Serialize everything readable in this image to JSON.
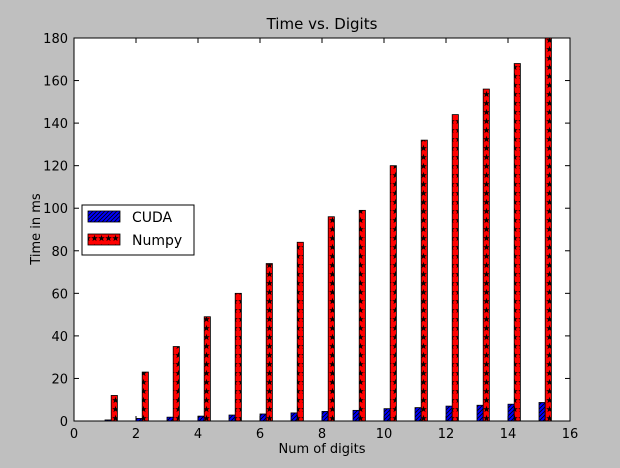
{
  "chart_data": {
    "type": "bar",
    "title": "Time vs. Digits",
    "xlabel": "Num of digits",
    "ylabel": "Time in ms",
    "xlim": [
      0,
      16
    ],
    "ylim": [
      0,
      180
    ],
    "xticks": [
      "0",
      "2",
      "4",
      "6",
      "8",
      "10",
      "12",
      "14",
      "16"
    ],
    "yticks": [
      "0",
      "20",
      "40",
      "60",
      "80",
      "100",
      "120",
      "140",
      "160",
      "180"
    ],
    "x": [
      1,
      2,
      3,
      4,
      5,
      6,
      7,
      8,
      9,
      10,
      11,
      12,
      13,
      14,
      15
    ],
    "grid": false,
    "legend_position": "center-left",
    "series": [
      {
        "name": "CUDA",
        "color": "#0000ff",
        "hatch": "diagonal-lines",
        "values": [
          0.5,
          1.2,
          1.8,
          2.3,
          2.8,
          3.3,
          3.8,
          4.5,
          5.0,
          5.8,
          6.3,
          7.0,
          7.4,
          7.9,
          8.7
        ]
      },
      {
        "name": "Numpy",
        "color": "#ff0000",
        "hatch": "stars",
        "values": [
          12,
          23,
          35,
          49,
          60,
          74,
          84,
          96,
          99,
          120,
          132,
          144,
          156,
          168,
          180
        ]
      }
    ]
  }
}
